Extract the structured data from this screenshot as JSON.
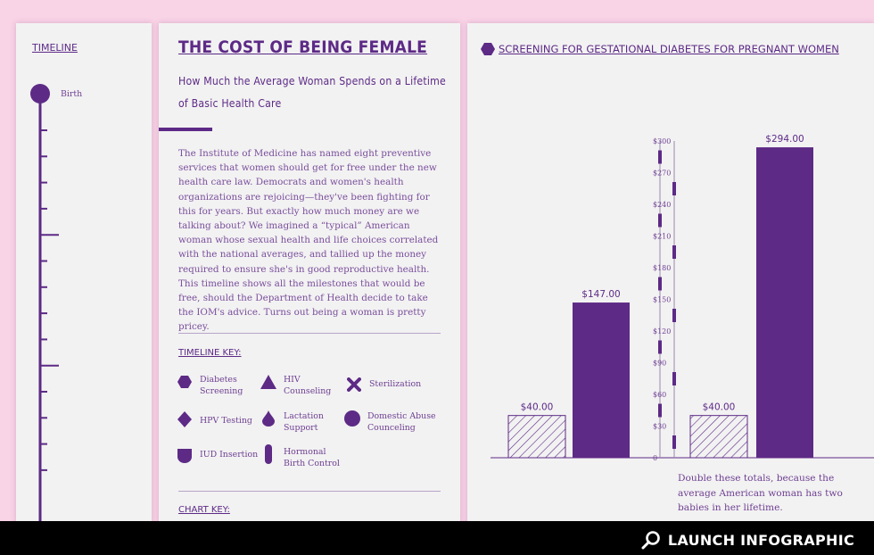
{
  "timeline": {
    "title": "TIMELINE",
    "first_label": "Birth"
  },
  "article": {
    "title": "THE COST OF BEING FEMALE",
    "subtitle_line1": "How Much the Average Woman Spends on a Lifetime",
    "subtitle_line2": "of Basic Health Care",
    "body": "The Institute of Medicine has named eight preventive services that women should get for free under the new health care law. Democrats and women's health organizations are rejoicing—they've been fighting for this for years. But exactly how much money are we talking about? We imagined a “typical” American woman whose sexual health and life choices correlated with the national averages, and tallied up the money required to ensure she's in good reproductive health. This timeline shows all the milestones that would be free, should the Department of Health decide to take the IOM's advice. Turns out being a woman is pretty pricey.",
    "timeline_key_title": "TIMELINE KEY:",
    "chart_key_title": "CHART KEY:",
    "key_items": [
      {
        "label_1": "Diabetes",
        "label_2": "Screening",
        "icon": "hexagon-icon"
      },
      {
        "label_1": "HIV",
        "label_2": "Counseling",
        "icon": "triangle-icon"
      },
      {
        "label_1": "Sterilization",
        "label_2": "",
        "icon": "x-icon"
      },
      {
        "label_1": "HPV Testing",
        "label_2": "",
        "icon": "diamond-icon"
      },
      {
        "label_1": "Lactation",
        "label_2": "Support",
        "icon": "drop-icon"
      },
      {
        "label_1": "Domestic Abuse",
        "label_2": "Counceling",
        "icon": "circle-icon"
      },
      {
        "label_1": "IUD Insertion",
        "label_2": "",
        "icon": "shield-icon"
      },
      {
        "label_1": "Hormonal",
        "label_2": "Birth Control",
        "icon": "pill-icon"
      }
    ]
  },
  "colors": {
    "purple": "#5d2a86",
    "pink": "#f9d3e6",
    "panel": "#f2f2f2"
  },
  "right": {
    "title": "SCREENING FOR GESTATIONAL DIABETES FOR PREGNANT WOMEN",
    "note_line1": "Double these totals, because the",
    "note_line2": "average American woman has two",
    "note_line3": "babies in her lifetime."
  },
  "chart_data": {
    "type": "bar",
    "ylim": [
      0,
      300
    ],
    "ticks": [
      "0",
      "$30",
      "$60",
      "$90",
      "$120",
      "$150",
      "$180",
      "$210",
      "$240",
      "$270",
      "$300"
    ],
    "tick_values": [
      0,
      30,
      60,
      90,
      120,
      150,
      180,
      210,
      240,
      270,
      300
    ],
    "groups": [
      {
        "bars": [
          {
            "value": 40,
            "label": "$40.00",
            "style": "hatched"
          },
          {
            "value": 147,
            "label": "$147.00",
            "style": "solid"
          }
        ]
      },
      {
        "bars": [
          {
            "value": 40,
            "label": "$40.00",
            "style": "hatched"
          },
          {
            "value": 294,
            "label": "$294.00",
            "style": "solid"
          }
        ]
      }
    ]
  },
  "footer": {
    "launch_label": "LAUNCH INFOGRAPHIC"
  }
}
